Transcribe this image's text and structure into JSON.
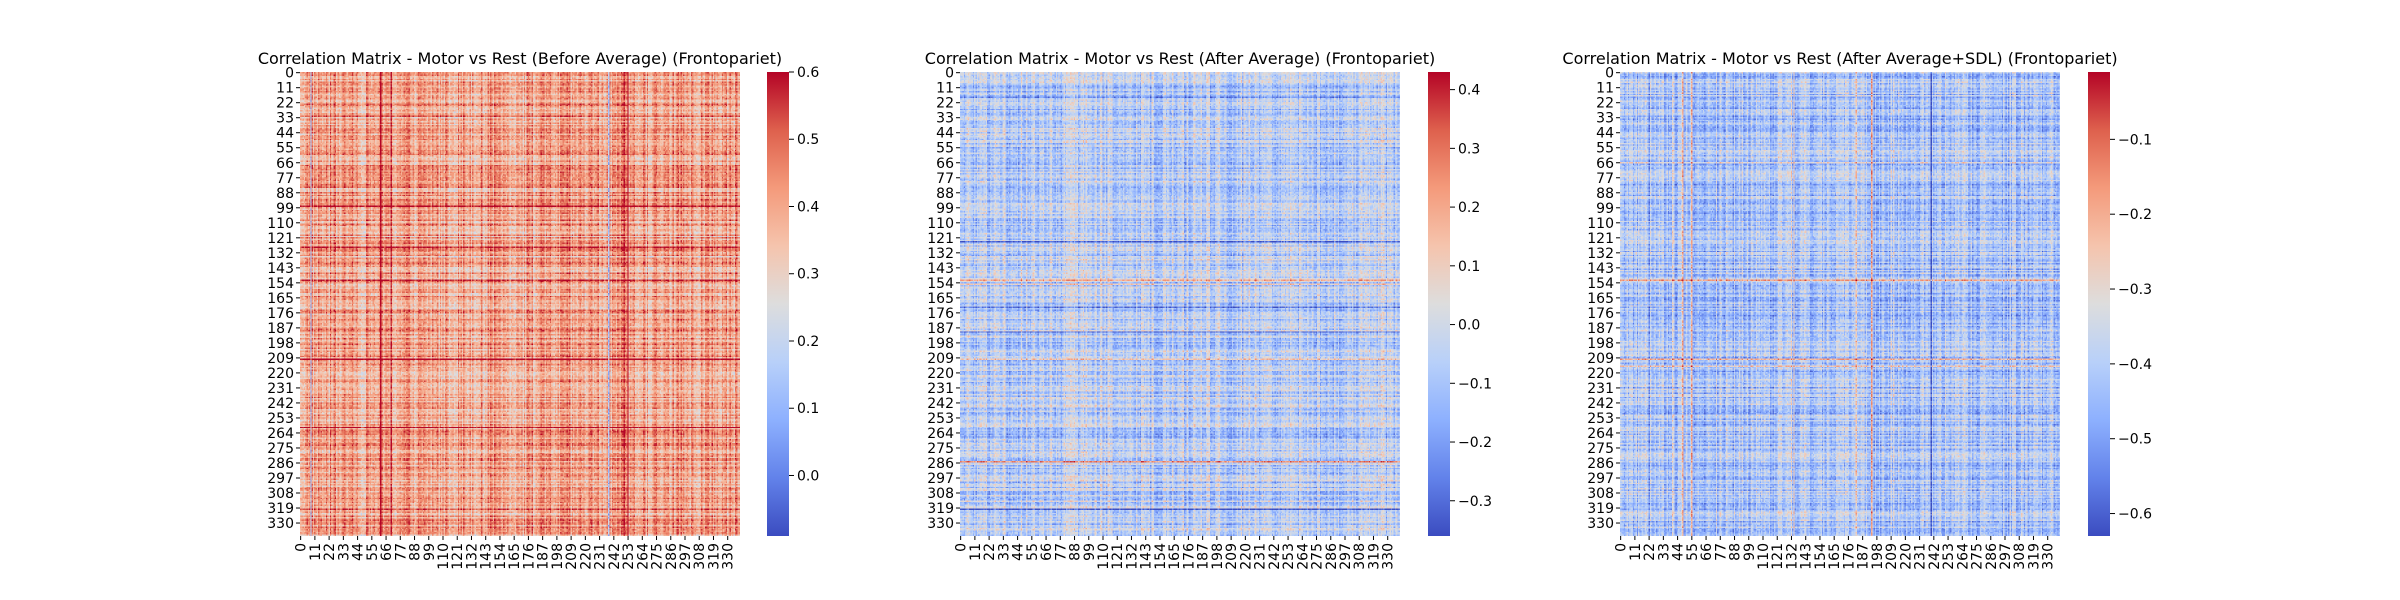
{
  "chart_data": [
    {
      "type": "heatmap",
      "title": "Correlation Matrix - Motor vs Rest (Before Average) (Frontopariet)",
      "xlabel": "",
      "ylabel": "",
      "size": 340,
      "tick_labels": [
        "0",
        "11",
        "22",
        "33",
        "44",
        "55",
        "66",
        "77",
        "88",
        "99",
        "110",
        "121",
        "132",
        "143",
        "154",
        "165",
        "176",
        "187",
        "198",
        "209",
        "220",
        "231",
        "242",
        "253",
        "264",
        "275",
        "286",
        "297",
        "308",
        "319",
        "330"
      ],
      "colormap": "coolwarm",
      "vmin": -0.09,
      "vmax": 0.6,
      "colorbar_ticks": [
        "0.0",
        "0.1",
        "0.2",
        "0.3",
        "0.4",
        "0.5",
        "0.6"
      ],
      "typical_value": 0.4,
      "strong_rows": [
        32,
        98,
        128,
        152,
        210,
        260,
        320
      ],
      "strong_cols": [
        62,
        70,
        250,
        253
      ],
      "weak_rows": [
        120,
        135
      ],
      "weak_cols": [
        8,
        238
      ]
    },
    {
      "type": "heatmap",
      "title": "Correlation Matrix - Motor vs Rest (After Average) (Frontopariet)",
      "xlabel": "",
      "ylabel": "",
      "size": 340,
      "tick_labels": [
        "0",
        "11",
        "22",
        "33",
        "44",
        "55",
        "66",
        "77",
        "88",
        "99",
        "110",
        "121",
        "132",
        "143",
        "154",
        "165",
        "176",
        "187",
        "198",
        "209",
        "220",
        "231",
        "242",
        "253",
        "264",
        "275",
        "286",
        "297",
        "308",
        "319",
        "330"
      ],
      "colormap": "coolwarm",
      "vmin": -0.36,
      "vmax": 0.43,
      "colorbar_ticks": [
        "−0.3",
        "−0.2",
        "−0.1",
        "0.0",
        "0.1",
        "0.2",
        "0.3",
        "0.4"
      ],
      "typical_value": -0.06,
      "strong_rows": [
        152,
        155,
        210,
        285
      ],
      "strong_cols": [],
      "weak_rows": [
        18,
        124,
        172,
        190,
        267,
        320
      ],
      "weak_cols": []
    },
    {
      "type": "heatmap",
      "title": "Correlation Matrix - Motor vs Rest (After Average+SDL) (Frontopariet)",
      "xlabel": "",
      "ylabel": "",
      "size": 340,
      "tick_labels": [
        "0",
        "11",
        "22",
        "33",
        "44",
        "55",
        "66",
        "77",
        "88",
        "99",
        "110",
        "121",
        "132",
        "143",
        "154",
        "165",
        "176",
        "187",
        "198",
        "209",
        "220",
        "231",
        "242",
        "253",
        "264",
        "275",
        "286",
        "297",
        "308",
        "319",
        "330"
      ],
      "colormap": "coolwarm",
      "vmin": -0.63,
      "vmax": -0.01,
      "colorbar_ticks": [
        "−0.6",
        "−0.5",
        "−0.4",
        "−0.3",
        "−0.2",
        "−0.1"
      ],
      "typical_value": -0.42,
      "strong_rows": [
        66,
        152,
        210,
        215
      ],
      "strong_cols": [
        40,
        48,
        55,
        132,
        134,
        182,
        194
      ],
      "weak_rows": [],
      "weak_cols": [
        22,
        100,
        240
      ]
    }
  ]
}
